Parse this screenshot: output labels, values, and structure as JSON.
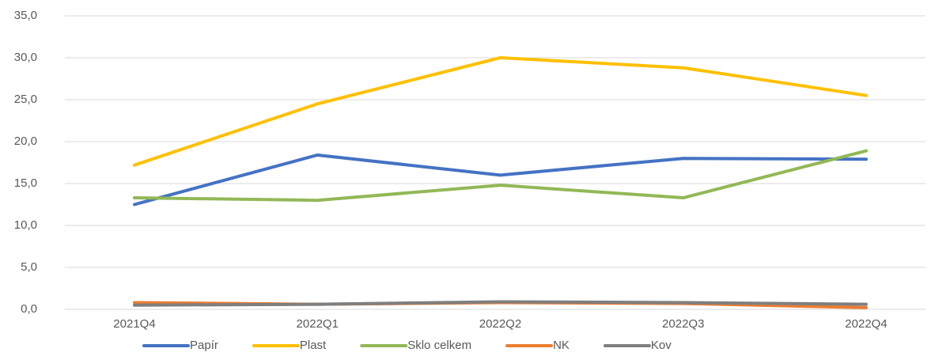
{
  "chart_data": {
    "type": "line",
    "categories": [
      "2021Q4",
      "2022Q1",
      "2022Q2",
      "2022Q3",
      "2022Q4"
    ],
    "series": [
      {
        "name": "Papír",
        "color": "#4472C4",
        "values": [
          12.5,
          18.4,
          16.0,
          18.0,
          17.9
        ]
      },
      {
        "name": "Plast",
        "color": "#FFC000",
        "values": [
          17.2,
          24.5,
          30.0,
          28.8,
          25.5
        ]
      },
      {
        "name": "Sklo celkem",
        "color": "#92B856",
        "values": [
          13.3,
          13.0,
          14.8,
          13.3,
          18.9
        ]
      },
      {
        "name": "NK",
        "color": "#ED7D31",
        "values": [
          0.8,
          0.6,
          0.8,
          0.7,
          0.2
        ]
      },
      {
        "name": "Kov",
        "color": "#7F7F7F",
        "values": [
          0.5,
          0.6,
          0.9,
          0.8,
          0.6
        ]
      }
    ],
    "ylim": [
      0,
      35
    ],
    "yticks": [
      {
        "value": 0,
        "label": "0,0"
      },
      {
        "value": 5,
        "label": "5,0"
      },
      {
        "value": 10,
        "label": "10,0"
      },
      {
        "value": 15,
        "label": "15,0"
      },
      {
        "value": 20,
        "label": "20,0"
      },
      {
        "value": 25,
        "label": "25,0"
      },
      {
        "value": 30,
        "label": "30,0"
      },
      {
        "value": 35,
        "label": "35,0"
      }
    ],
    "grid": true,
    "legend": "bottom"
  }
}
